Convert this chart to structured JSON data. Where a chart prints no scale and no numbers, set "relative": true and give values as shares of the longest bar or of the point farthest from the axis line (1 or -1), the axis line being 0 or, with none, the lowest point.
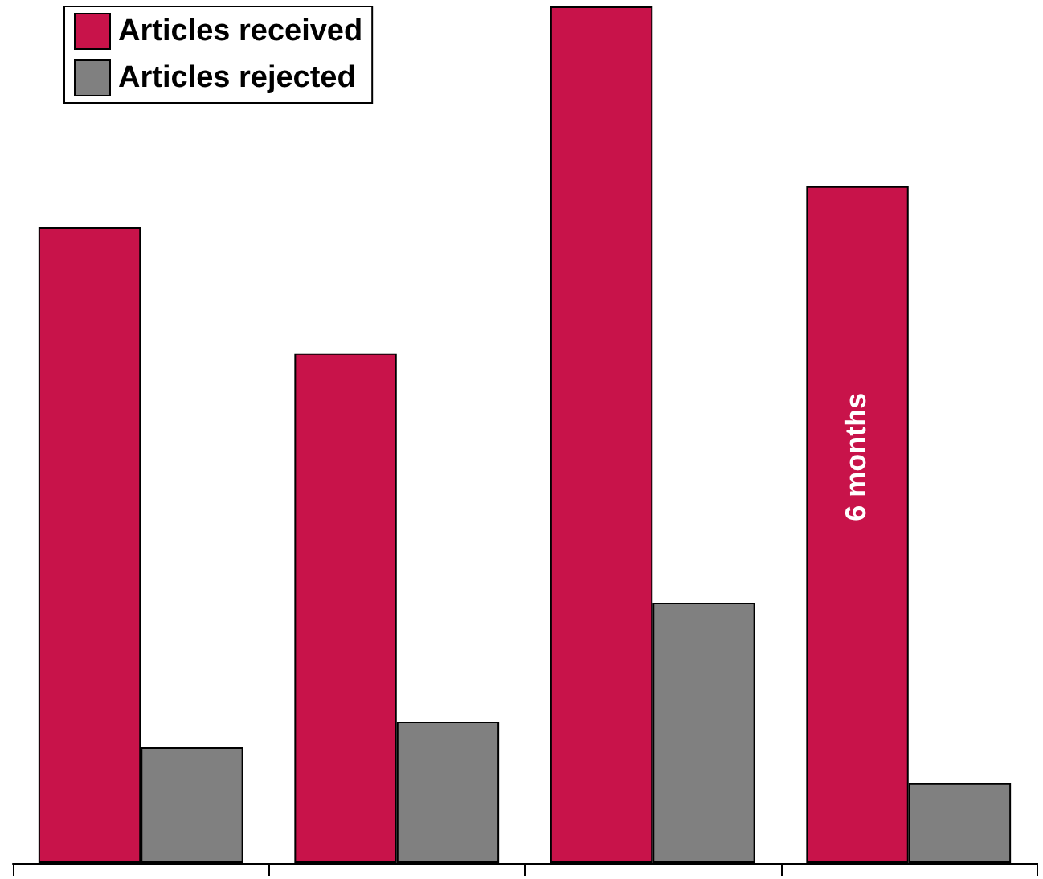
{
  "chart_data": {
    "type": "bar",
    "relative": true,
    "categories": [
      null,
      null,
      null,
      null
    ],
    "series": [
      {
        "name": "Articles received",
        "color": "#c8134a",
        "values": [
          0.742,
          0.595,
          1,
          0.79
        ]
      },
      {
        "name": "Articles rejected",
        "color": "#808080",
        "values": [
          0.135,
          0.165,
          0.304,
          0.093
        ]
      }
    ],
    "annotations": [
      "6 months"
    ],
    "legend": "top left"
  }
}
